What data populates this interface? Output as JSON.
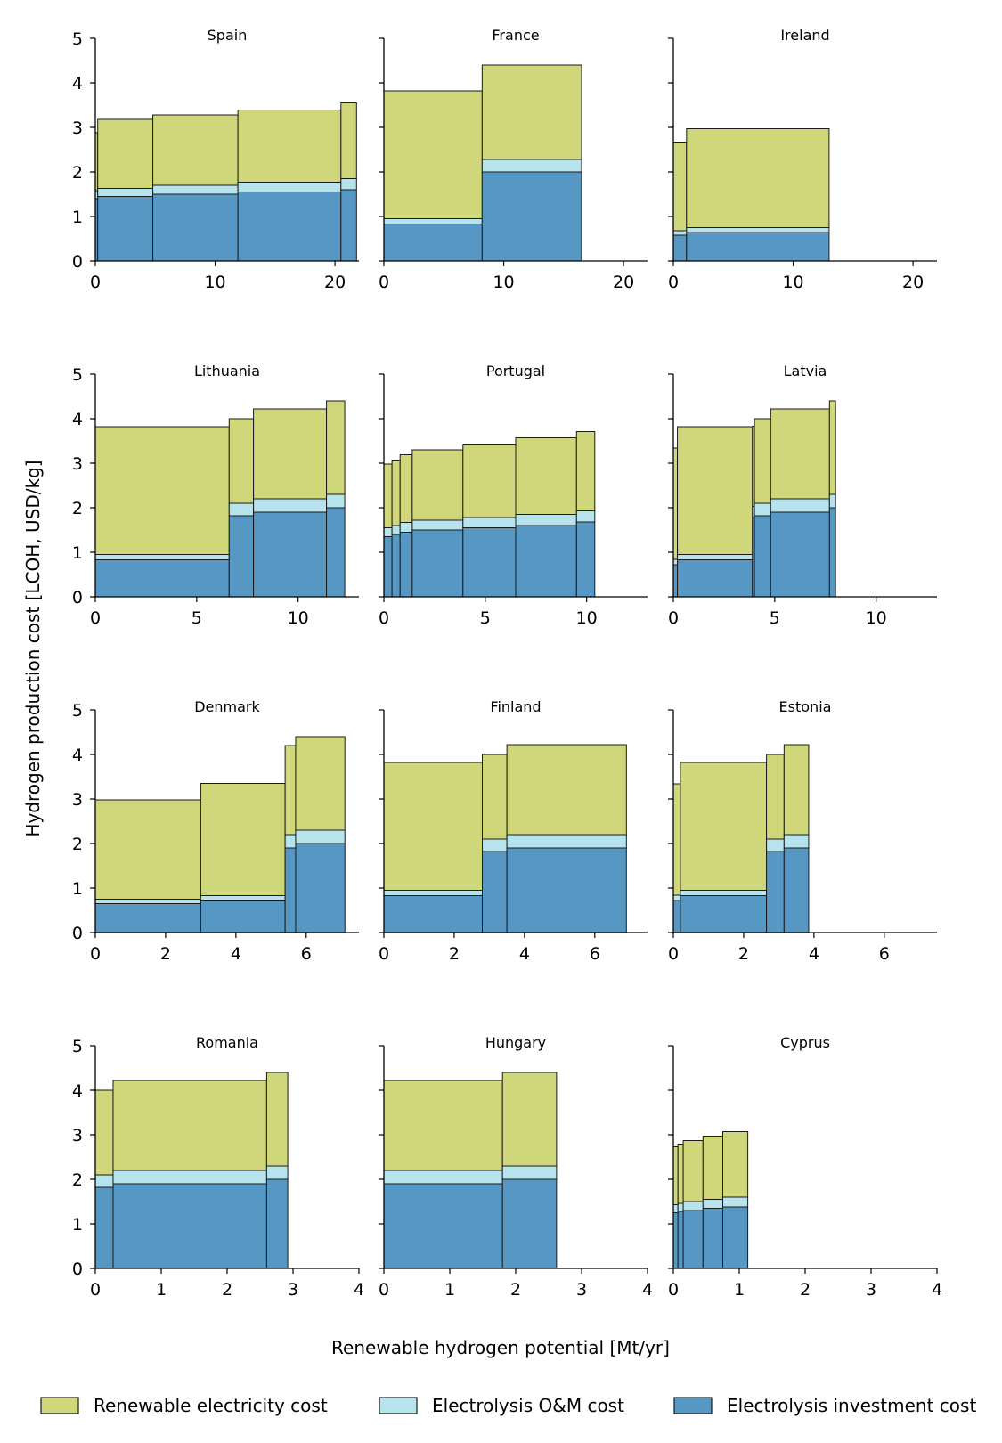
{
  "figure": {
    "ylabel": "Hydrogen production cost [LCOH, USD/kg]",
    "xlabel": "Renewable hydrogen potential [Mt/yr]"
  },
  "colors": {
    "renewable": "#cfd77a",
    "om": "#b7e3ec",
    "investment": "#5797c4",
    "edge": "#1a1a1a"
  },
  "legend": [
    {
      "key": "renewable",
      "label": "Renewable electricity cost"
    },
    {
      "key": "om",
      "label": "Electrolysis O&M cost"
    },
    {
      "key": "investment",
      "label": "Electrolysis investment cost"
    }
  ],
  "chart_data": [
    {
      "type": "bar",
      "title": "Spain",
      "xlim": [
        0,
        22
      ],
      "ylim": [
        0,
        5
      ],
      "xticks": [
        0,
        10,
        20
      ],
      "yticks": [
        0,
        1,
        2,
        3,
        4,
        5
      ],
      "bars": [
        {
          "x0": 0,
          "x1": 0.2,
          "investment": 1.4,
          "om": 0.18,
          "renewable": 1.3
        },
        {
          "x0": 0.2,
          "x1": 4.8,
          "investment": 1.45,
          "om": 0.18,
          "renewable": 1.55
        },
        {
          "x0": 4.8,
          "x1": 11.9,
          "investment": 1.5,
          "om": 0.2,
          "renewable": 1.58
        },
        {
          "x0": 11.9,
          "x1": 20.5,
          "investment": 1.55,
          "om": 0.22,
          "renewable": 1.62
        },
        {
          "x0": 20.5,
          "x1": 21.8,
          "investment": 1.6,
          "om": 0.25,
          "renewable": 1.7
        }
      ]
    },
    {
      "type": "bar",
      "title": "France",
      "xlim": [
        0,
        22
      ],
      "ylim": [
        0,
        5
      ],
      "xticks": [
        0,
        10,
        20
      ],
      "yticks": [
        0,
        1,
        2,
        3,
        4,
        5
      ],
      "bars": [
        {
          "x0": 0,
          "x1": 8.2,
          "investment": 0.83,
          "om": 0.12,
          "renewable": 2.87
        },
        {
          "x0": 8.2,
          "x1": 16.5,
          "investment": 2.0,
          "om": 0.28,
          "renewable": 2.12
        }
      ]
    },
    {
      "type": "bar",
      "title": "Ireland",
      "xlim": [
        0,
        22
      ],
      "ylim": [
        0,
        5
      ],
      "xticks": [
        0,
        10,
        20
      ],
      "yticks": [
        0,
        1,
        2,
        3,
        4,
        5
      ],
      "bars": [
        {
          "x0": 0,
          "x1": 1.1,
          "investment": 0.58,
          "om": 0.1,
          "renewable": 1.99
        },
        {
          "x0": 1.1,
          "x1": 13.0,
          "investment": 0.65,
          "om": 0.1,
          "renewable": 2.22
        }
      ]
    },
    {
      "type": "bar",
      "title": "Lithuania",
      "xlim": [
        0,
        13
      ],
      "ylim": [
        0,
        5
      ],
      "xticks": [
        0,
        5,
        10
      ],
      "yticks": [
        0,
        1,
        2,
        3,
        4,
        5
      ],
      "bars": [
        {
          "x0": 0,
          "x1": 6.6,
          "investment": 0.83,
          "om": 0.12,
          "renewable": 2.87
        },
        {
          "x0": 6.6,
          "x1": 7.8,
          "investment": 1.82,
          "om": 0.28,
          "renewable": 1.9
        },
        {
          "x0": 7.8,
          "x1": 11.4,
          "investment": 1.9,
          "om": 0.3,
          "renewable": 2.02
        },
        {
          "x0": 11.4,
          "x1": 12.3,
          "investment": 2.0,
          "om": 0.3,
          "renewable": 2.1
        }
      ]
    },
    {
      "type": "bar",
      "title": "Portugal",
      "xlim": [
        0,
        13
      ],
      "ylim": [
        0,
        5
      ],
      "xticks": [
        0,
        5,
        10
      ],
      "yticks": [
        0,
        1,
        2,
        3,
        4,
        5
      ],
      "bars": [
        {
          "x0": 0,
          "x1": 0.4,
          "investment": 1.35,
          "om": 0.2,
          "renewable": 1.43
        },
        {
          "x0": 0.4,
          "x1": 0.8,
          "investment": 1.4,
          "om": 0.2,
          "renewable": 1.47
        },
        {
          "x0": 0.8,
          "x1": 1.4,
          "investment": 1.45,
          "om": 0.22,
          "renewable": 1.52
        },
        {
          "x0": 1.4,
          "x1": 3.9,
          "investment": 1.5,
          "om": 0.22,
          "renewable": 1.58
        },
        {
          "x0": 3.9,
          "x1": 6.5,
          "investment": 1.55,
          "om": 0.23,
          "renewable": 1.63
        },
        {
          "x0": 6.5,
          "x1": 9.5,
          "investment": 1.6,
          "om": 0.25,
          "renewable": 1.72
        },
        {
          "x0": 9.5,
          "x1": 10.4,
          "investment": 1.68,
          "om": 0.25,
          "renewable": 1.78
        }
      ]
    },
    {
      "type": "bar",
      "title": "Latvia",
      "xlim": [
        0,
        13
      ],
      "ylim": [
        0,
        5
      ],
      "xticks": [
        0,
        5,
        10
      ],
      "yticks": [
        0,
        1,
        2,
        3,
        4,
        5
      ],
      "bars": [
        {
          "x0": 0,
          "x1": 0.2,
          "investment": 0.72,
          "om": 0.12,
          "renewable": 2.5
        },
        {
          "x0": 0.2,
          "x1": 3.9,
          "investment": 0.83,
          "om": 0.12,
          "renewable": 2.87
        },
        {
          "x0": 3.9,
          "x1": 4.0,
          "investment": 1.78,
          "om": 0.25,
          "renewable": 1.8
        },
        {
          "x0": 4.0,
          "x1": 4.8,
          "investment": 1.82,
          "om": 0.28,
          "renewable": 1.9
        },
        {
          "x0": 4.8,
          "x1": 7.7,
          "investment": 1.9,
          "om": 0.3,
          "renewable": 2.02
        },
        {
          "x0": 7.7,
          "x1": 8.0,
          "investment": 2.0,
          "om": 0.3,
          "renewable": 2.1
        }
      ]
    },
    {
      "type": "bar",
      "title": "Denmark",
      "xlim": [
        0,
        7.5
      ],
      "ylim": [
        0,
        5
      ],
      "xticks": [
        0,
        2,
        4,
        6
      ],
      "yticks": [
        0,
        1,
        2,
        3,
        4,
        5
      ],
      "bars": [
        {
          "x0": 0,
          "x1": 3.0,
          "investment": 0.65,
          "om": 0.1,
          "renewable": 2.23
        },
        {
          "x0": 3.0,
          "x1": 5.4,
          "investment": 0.73,
          "om": 0.1,
          "renewable": 2.52
        },
        {
          "x0": 5.4,
          "x1": 5.7,
          "investment": 1.9,
          "om": 0.3,
          "renewable": 2.0
        },
        {
          "x0": 5.7,
          "x1": 7.1,
          "investment": 2.0,
          "om": 0.3,
          "renewable": 2.1
        }
      ]
    },
    {
      "type": "bar",
      "title": "Finland",
      "xlim": [
        0,
        7.5
      ],
      "ylim": [
        0,
        5
      ],
      "xticks": [
        0,
        2,
        4,
        6
      ],
      "yticks": [
        0,
        1,
        2,
        3,
        4,
        5
      ],
      "bars": [
        {
          "x0": 0,
          "x1": 2.8,
          "investment": 0.83,
          "om": 0.12,
          "renewable": 2.87
        },
        {
          "x0": 2.8,
          "x1": 3.5,
          "investment": 1.82,
          "om": 0.28,
          "renewable": 1.9
        },
        {
          "x0": 3.5,
          "x1": 6.9,
          "investment": 1.9,
          "om": 0.3,
          "renewable": 2.02
        }
      ]
    },
    {
      "type": "bar",
      "title": "Estonia",
      "xlim": [
        0,
        7.5
      ],
      "ylim": [
        0,
        5
      ],
      "xticks": [
        0,
        2,
        4,
        6
      ],
      "yticks": [
        0,
        1,
        2,
        3,
        4,
        5
      ],
      "bars": [
        {
          "x0": 0,
          "x1": 0.2,
          "investment": 0.72,
          "om": 0.12,
          "renewable": 2.5
        },
        {
          "x0": 0.2,
          "x1": 2.65,
          "investment": 0.83,
          "om": 0.12,
          "renewable": 2.87
        },
        {
          "x0": 2.65,
          "x1": 3.15,
          "investment": 1.82,
          "om": 0.28,
          "renewable": 1.9
        },
        {
          "x0": 3.15,
          "x1": 3.85,
          "investment": 1.9,
          "om": 0.3,
          "renewable": 2.02
        }
      ]
    },
    {
      "type": "bar",
      "title": "Romania",
      "xlim": [
        0,
        4
      ],
      "ylim": [
        0,
        5
      ],
      "xticks": [
        0,
        1,
        2,
        3,
        4
      ],
      "yticks": [
        0,
        1,
        2,
        3,
        4,
        5
      ],
      "bars": [
        {
          "x0": 0,
          "x1": 0.27,
          "investment": 1.82,
          "om": 0.28,
          "renewable": 1.9
        },
        {
          "x0": 0.27,
          "x1": 2.6,
          "investment": 1.9,
          "om": 0.3,
          "renewable": 2.02
        },
        {
          "x0": 2.6,
          "x1": 2.92,
          "investment": 2.0,
          "om": 0.3,
          "renewable": 2.1
        }
      ]
    },
    {
      "type": "bar",
      "title": "Hungary",
      "xlim": [
        0,
        4
      ],
      "ylim": [
        0,
        5
      ],
      "xticks": [
        0,
        1,
        2,
        3,
        4
      ],
      "yticks": [
        0,
        1,
        2,
        3,
        4,
        5
      ],
      "bars": [
        {
          "x0": 0,
          "x1": 1.8,
          "investment": 1.9,
          "om": 0.3,
          "renewable": 2.02
        },
        {
          "x0": 1.8,
          "x1": 2.62,
          "investment": 2.0,
          "om": 0.3,
          "renewable": 2.1
        }
      ]
    },
    {
      "type": "bar",
      "title": "Cyprus",
      "xlim": [
        0,
        4
      ],
      "ylim": [
        0,
        5
      ],
      "xticks": [
        0,
        1,
        2,
        3,
        4
      ],
      "yticks": [
        0,
        1,
        2,
        3,
        4,
        5
      ],
      "bars": [
        {
          "x0": 0,
          "x1": 0.07,
          "investment": 1.25,
          "om": 0.18,
          "renewable": 1.3
        },
        {
          "x0": 0.07,
          "x1": 0.15,
          "investment": 1.28,
          "om": 0.18,
          "renewable": 1.33
        },
        {
          "x0": 0.15,
          "x1": 0.45,
          "investment": 1.3,
          "om": 0.2,
          "renewable": 1.37
        },
        {
          "x0": 0.45,
          "x1": 0.75,
          "investment": 1.35,
          "om": 0.2,
          "renewable": 1.42
        },
        {
          "x0": 0.75,
          "x1": 1.13,
          "investment": 1.38,
          "om": 0.22,
          "renewable": 1.47
        }
      ]
    }
  ]
}
